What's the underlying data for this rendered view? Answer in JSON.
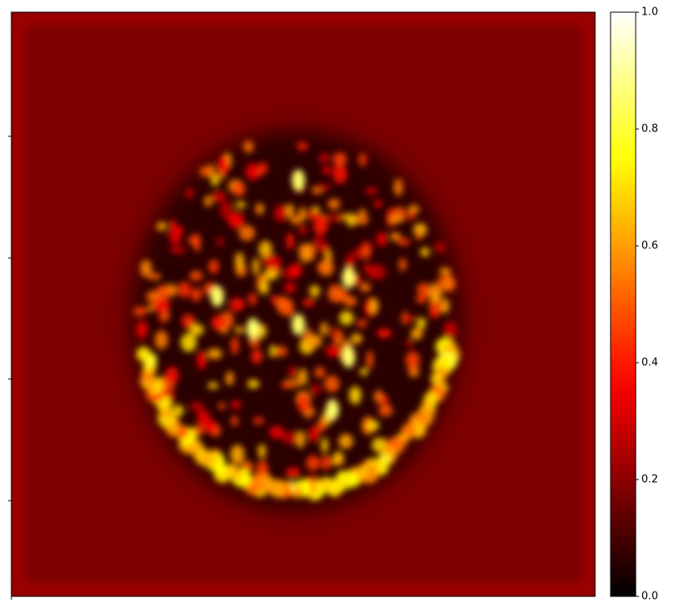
{
  "chart_data": {
    "type": "heatmap",
    "colormap": "hot",
    "clim": [
      0,
      1
    ],
    "colorbar_ticks": [
      {
        "value": 0,
        "label": "0.0"
      },
      0.2,
      0.4,
      0.6,
      0.8,
      {
        "value": 1,
        "label": "1.0"
      }
    ]
  }
}
